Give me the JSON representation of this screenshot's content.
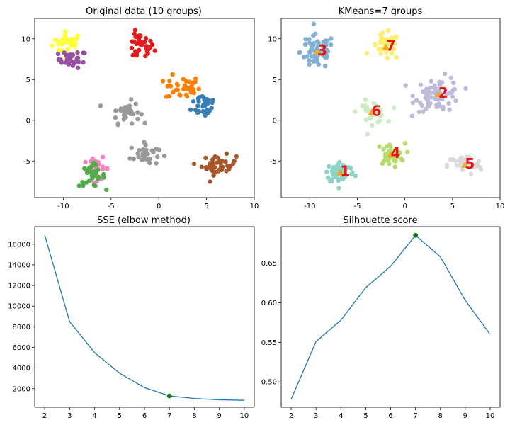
{
  "colors": {
    "series_line": "#1f77b4",
    "best_marker": "#1a7f1a",
    "centroid_label": "#e8141c",
    "centroid_marker": "#f5a623"
  },
  "chart_data": [
    {
      "type": "scatter",
      "title": "Original data (10 groups)",
      "xlim": [
        -13,
        10
      ],
      "ylim": [
        -9.5,
        12.5
      ],
      "xticks": [
        -10,
        -5,
        0,
        5,
        10
      ],
      "yticks": [
        -5,
        0,
        5,
        10
      ],
      "groups": [
        {
          "name": "yellow",
          "color": "#ffff33",
          "center": [
            -9.5,
            9.5
          ],
          "spread": [
            1.1,
            0.9
          ],
          "n": 30
        },
        {
          "name": "purple",
          "color": "#984ea3",
          "center": [
            -9.0,
            7.5
          ],
          "spread": [
            1.0,
            0.7
          ],
          "n": 30
        },
        {
          "name": "red",
          "color": "#e41a1c",
          "center": [
            -2.0,
            9.0
          ],
          "spread": [
            1.0,
            1.1
          ],
          "n": 35
        },
        {
          "name": "orange",
          "color": "#ff7f00",
          "center": [
            2.5,
            4.0
          ],
          "spread": [
            1.2,
            1.0
          ],
          "n": 35
        },
        {
          "name": "blue",
          "color": "#377eb8",
          "center": [
            4.8,
            2.0
          ],
          "spread": [
            0.9,
            1.1
          ],
          "n": 35
        },
        {
          "name": "gray",
          "color": "#999999",
          "center": [
            -3.5,
            1.0
          ],
          "spread": [
            1.0,
            0.9
          ],
          "n": 35
        },
        {
          "name": "gray2",
          "color": "#999999",
          "center": [
            -1.5,
            -4.2
          ],
          "spread": [
            1.0,
            0.9
          ],
          "n": 35
        },
        {
          "name": "brown",
          "color": "#a65628",
          "center": [
            6.3,
            -5.5
          ],
          "spread": [
            1.2,
            0.8
          ],
          "n": 40
        },
        {
          "name": "pink",
          "color": "#f781bf",
          "center": [
            -6.5,
            -6.0
          ],
          "spread": [
            0.9,
            0.9
          ],
          "n": 30
        },
        {
          "name": "green",
          "color": "#4daf4a",
          "center": [
            -7.0,
            -6.8
          ],
          "spread": [
            0.9,
            0.9
          ],
          "n": 30
        }
      ]
    },
    {
      "type": "scatter",
      "title": "KMeans=7 groups",
      "xlim": [
        -13,
        10
      ],
      "ylim": [
        -9.5,
        12.5
      ],
      "xticks": [
        -10,
        -5,
        0,
        5,
        10
      ],
      "yticks": [
        -5,
        0,
        5,
        10
      ],
      "groups": [
        {
          "name": "cluster-3",
          "color": "#80b1d3",
          "center": [
            -9.2,
            8.4
          ],
          "spread": [
            1.2,
            1.4
          ],
          "n": 70
        },
        {
          "name": "cluster-7",
          "color": "#ffed6f",
          "center": [
            -2.0,
            9.0
          ],
          "spread": [
            1.0,
            1.1
          ],
          "n": 35
        },
        {
          "name": "cluster-2",
          "color": "#bebada",
          "center": [
            3.5,
            3.2
          ],
          "spread": [
            1.6,
            1.4
          ],
          "n": 70
        },
        {
          "name": "cluster-6",
          "color": "#ccebc5",
          "center": [
            -3.5,
            1.0
          ],
          "spread": [
            1.0,
            0.9
          ],
          "n": 35
        },
        {
          "name": "cluster-4",
          "color": "#b3de69",
          "center": [
            -1.5,
            -4.2
          ],
          "spread": [
            1.0,
            0.9
          ],
          "n": 35
        },
        {
          "name": "cluster-5",
          "color": "#d9d9d9",
          "center": [
            6.3,
            -5.5
          ],
          "spread": [
            1.2,
            0.8
          ],
          "n": 40
        },
        {
          "name": "cluster-1",
          "color": "#8dd3c7",
          "center": [
            -6.8,
            -6.4
          ],
          "spread": [
            1.0,
            0.9
          ],
          "n": 60
        }
      ],
      "centroids": [
        {
          "label": "1",
          "x": -6.8,
          "y": -6.4
        },
        {
          "label": "2",
          "x": 3.5,
          "y": 3.2
        },
        {
          "label": "3",
          "x": -9.2,
          "y": 8.4
        },
        {
          "label": "4",
          "x": -1.5,
          "y": -4.2
        },
        {
          "label": "5",
          "x": 6.3,
          "y": -5.5
        },
        {
          "label": "6",
          "x": -3.5,
          "y": 1.0
        },
        {
          "label": "7",
          "x": -2.0,
          "y": 9.0
        }
      ]
    },
    {
      "type": "line",
      "title": "SSE (elbow method)",
      "x": [
        2,
        3,
        4,
        5,
        6,
        7,
        8,
        9,
        10
      ],
      "values": [
        16900,
        8500,
        5500,
        3500,
        2100,
        1300,
        1050,
        920,
        870
      ],
      "xlim": [
        1.6,
        10.4
      ],
      "ylim": [
        200,
        17700
      ],
      "xticks": [
        2,
        3,
        4,
        5,
        6,
        7,
        8,
        9,
        10
      ],
      "yticks": [
        2000,
        4000,
        6000,
        8000,
        10000,
        12000,
        14000,
        16000
      ],
      "highlight": {
        "x": 7,
        "y": 1300
      }
    },
    {
      "type": "line",
      "title": "Silhouette score",
      "x": [
        2,
        3,
        4,
        5,
        6,
        7,
        8,
        9,
        10
      ],
      "values": [
        0.478,
        0.551,
        0.578,
        0.619,
        0.646,
        0.685,
        0.658,
        0.603,
        0.56
      ],
      "xlim": [
        1.6,
        10.4
      ],
      "ylim": [
        0.468,
        0.696
      ],
      "xticks": [
        2,
        3,
        4,
        5,
        6,
        7,
        8,
        9,
        10
      ],
      "yticks": [
        0.5,
        0.55,
        0.6,
        0.65
      ],
      "ytick_format": 2,
      "highlight": {
        "x": 7,
        "y": 0.685
      }
    }
  ]
}
